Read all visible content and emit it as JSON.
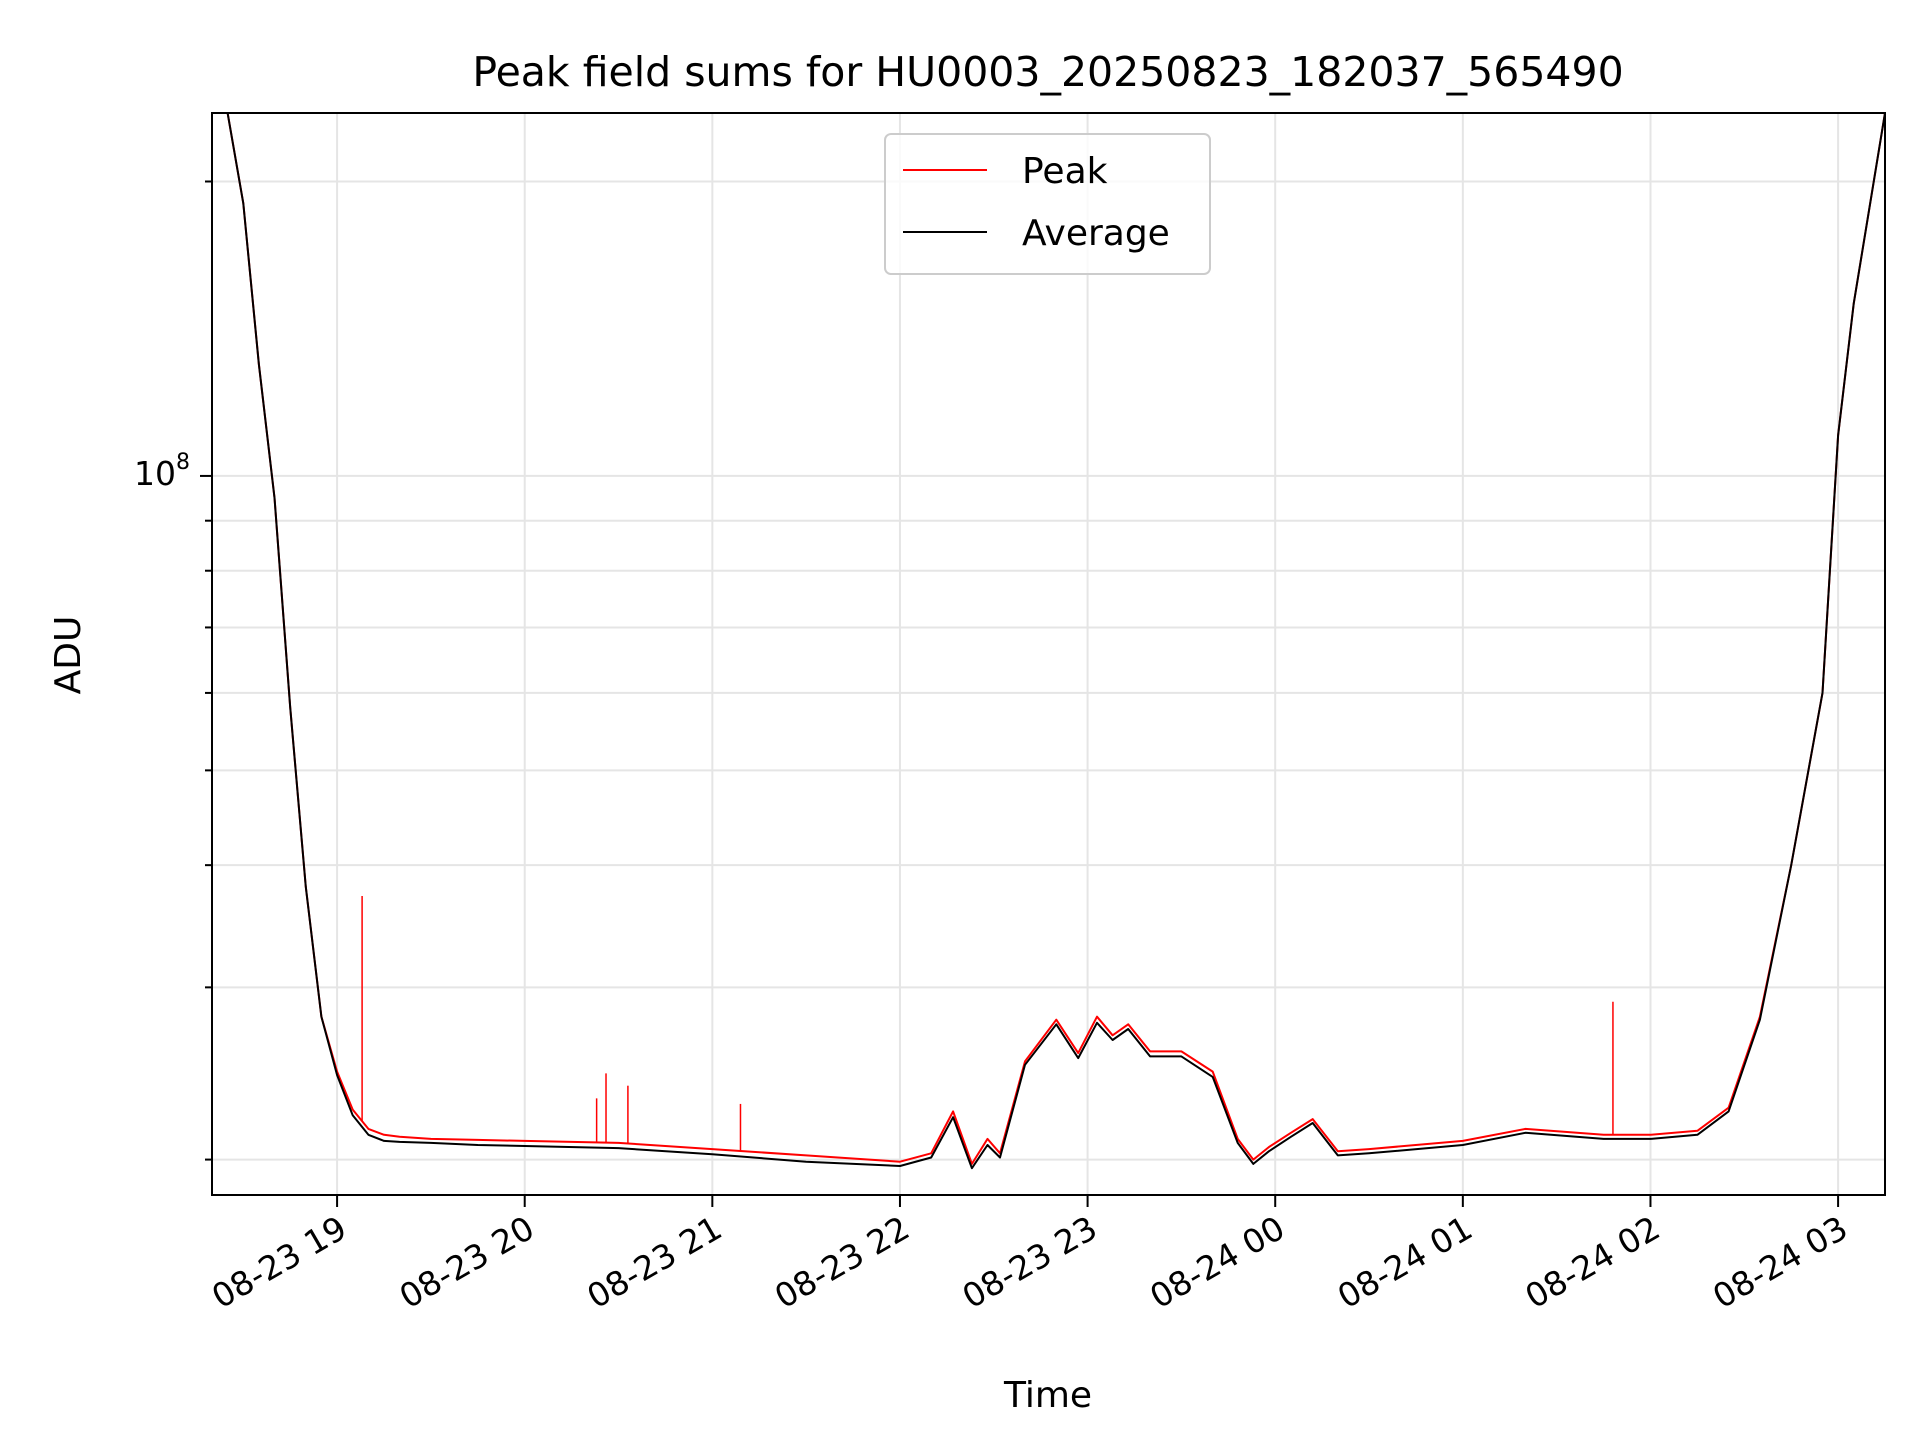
{
  "chart_data": {
    "type": "line",
    "title": "Peak field sums for HU0003_20250823_182037_565490",
    "xlabel": "Time",
    "ylabel": "ADU",
    "y_scale": "log",
    "grid": true,
    "legend_placement": "upper-center",
    "x_range": [
      "08-23 18:20",
      "08-24 03:15"
    ],
    "y_range": [
      18400000,
      235000000
    ],
    "x_ticks": [
      "08-23 19",
      "08-23 20",
      "08-23 21",
      "08-23 22",
      "08-23 23",
      "08-24 00",
      "08-24 01",
      "08-24 02",
      "08-24 03"
    ],
    "y_tick_major": {
      "base": "10",
      "exponent": "8",
      "value": 100000000
    },
    "y_minor_ticks": [
      20000000,
      30000000,
      40000000,
      50000000,
      60000000,
      70000000,
      80000000,
      90000000,
      200000000
    ],
    "x_tick_rotation_deg": 30,
    "series": [
      {
        "name": "Peak",
        "color": "#ff0000",
        "x": [
          "08-23 18:20",
          "08-23 18:25",
          "08-23 18:30",
          "08-23 18:35",
          "08-23 18:40",
          "08-23 18:45",
          "08-23 18:50",
          "08-23 18:55",
          "08-23 19:00",
          "08-23 19:05",
          "08-23 19:10",
          "08-23 19:15",
          "08-23 19:20",
          "08-23 19:30",
          "08-23 19:45",
          "08-23 20:00",
          "08-23 20:30",
          "08-23 21:00",
          "08-23 21:30",
          "08-23 22:00",
          "08-23 22:10",
          "08-23 22:17",
          "08-23 22:23",
          "08-23 22:28",
          "08-23 22:32",
          "08-23 22:40",
          "08-23 22:50",
          "08-23 22:57",
          "08-23 23:03",
          "08-23 23:08",
          "08-23 23:13",
          "08-23 23:20",
          "08-23 23:30",
          "08-23 23:40",
          "08-23 23:48",
          "08-23 23:53",
          "08-23 23:58",
          "08-24 00:05",
          "08-24 00:12",
          "08-24 00:20",
          "08-24 00:30",
          "08-24 01:00",
          "08-24 01:20",
          "08-24 01:45",
          "08-24 02:00",
          "08-24 02:15",
          "08-24 02:25",
          "08-24 02:35",
          "08-24 02:45",
          "08-24 02:55",
          "08-24 03:00",
          "08-24 03:05",
          "08-24 03:15"
        ],
        "y": [
          235000000,
          235000000,
          190000000,
          130000000,
          95000000,
          58000000,
          38000000,
          28000000,
          24600000,
          22500000,
          21500000,
          21200000,
          21100000,
          21000000,
          20950000,
          20900000,
          20800000,
          20500000,
          20200000,
          19900000,
          20300000,
          22400000,
          19800000,
          21000000,
          20300000,
          25200000,
          27800000,
          25700000,
          28000000,
          26800000,
          27500000,
          25800000,
          25800000,
          24600000,
          21000000,
          20000000,
          20600000,
          21300000,
          22000000,
          20400000,
          20500000,
          20900000,
          21500000,
          21200000,
          21200000,
          21400000,
          22600000,
          28000000,
          40000000,
          60000000,
          110000000,
          150000000,
          235000000
        ],
        "spikes": [
          {
            "x": "08-23 19:08",
            "y": 37200000
          },
          {
            "x": "08-23 20:23",
            "y": 23100000
          },
          {
            "x": "08-23 20:26",
            "y": 24500000
          },
          {
            "x": "08-23 20:33",
            "y": 23800000
          },
          {
            "x": "08-23 21:09",
            "y": 22800000
          },
          {
            "x": "08-24 01:48",
            "y": 29000000
          }
        ]
      },
      {
        "name": "Average",
        "color": "#000000",
        "x": [
          "08-23 18:20",
          "08-23 18:25",
          "08-23 18:30",
          "08-23 18:35",
          "08-23 18:40",
          "08-23 18:45",
          "08-23 18:50",
          "08-23 18:55",
          "08-23 19:00",
          "08-23 19:05",
          "08-23 19:10",
          "08-23 19:15",
          "08-23 19:20",
          "08-23 19:30",
          "08-23 19:45",
          "08-23 20:00",
          "08-23 20:30",
          "08-23 21:00",
          "08-23 21:30",
          "08-23 22:00",
          "08-23 22:10",
          "08-23 22:17",
          "08-23 22:23",
          "08-23 22:28",
          "08-23 22:32",
          "08-23 22:40",
          "08-23 22:50",
          "08-23 22:57",
          "08-23 23:03",
          "08-23 23:08",
          "08-23 23:13",
          "08-23 23:20",
          "08-23 23:30",
          "08-23 23:40",
          "08-23 23:48",
          "08-23 23:53",
          "08-23 23:58",
          "08-24 00:05",
          "08-24 00:12",
          "08-24 00:20",
          "08-24 00:30",
          "08-24 01:00",
          "08-24 01:20",
          "08-24 01:45",
          "08-24 02:00",
          "08-24 02:15",
          "08-24 02:25",
          "08-24 02:35",
          "08-24 02:45",
          "08-24 02:55",
          "08-24 03:00",
          "08-24 03:05",
          "08-24 03:15"
        ],
        "y": [
          235000000,
          235000000,
          190000000,
          130000000,
          95000000,
          58000000,
          38000000,
          28000000,
          24400000,
          22200000,
          21200000,
          20900000,
          20850000,
          20800000,
          20700000,
          20650000,
          20550000,
          20250000,
          19900000,
          19700000,
          20100000,
          22100000,
          19600000,
          20700000,
          20100000,
          25000000,
          27500000,
          25400000,
          27600000,
          26500000,
          27200000,
          25500000,
          25500000,
          24300000,
          20800000,
          19800000,
          20400000,
          21100000,
          21800000,
          20200000,
          20300000,
          20700000,
          21300000,
          21000000,
          21000000,
          21200000,
          22400000,
          27800000,
          40000000,
          60000000,
          110000000,
          150000000,
          235000000
        ]
      }
    ]
  }
}
